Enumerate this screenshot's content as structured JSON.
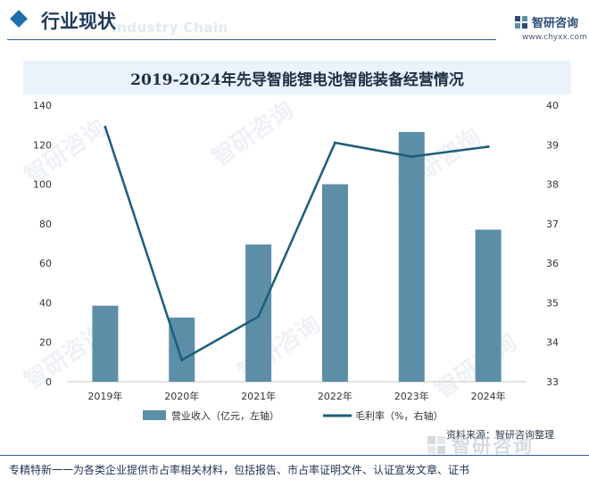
{
  "header": {
    "title": "行业现状",
    "subtitle_watermark": "Industry Chain",
    "logo_name": "智研咨询",
    "site": "www.chyxx.com"
  },
  "watermark": {
    "text": "智研咨询"
  },
  "chart_data": {
    "type": "bar+line",
    "title": "2019-2024年先导智能锂电池智能装备经营情况",
    "categories": [
      "2019年",
      "2020年",
      "2021年",
      "2022年",
      "2023年",
      "2024年"
    ],
    "series": [
      {
        "name": "营业收入（亿元，左轴）",
        "type": "bar",
        "axis": "left",
        "values": [
          38.5,
          32.5,
          69.5,
          100.0,
          126.5,
          77.0
        ],
        "color": "#5d8ea8"
      },
      {
        "name": "毛利率（%，右轴）",
        "type": "line",
        "axis": "right",
        "values": [
          39.45,
          33.55,
          34.65,
          39.05,
          38.7,
          38.95
        ],
        "color": "#1d5d7a"
      }
    ],
    "left_axis": {
      "min": 0,
      "max": 140,
      "ticks": [
        "0",
        "20",
        "40",
        "60",
        "80",
        "100",
        "120",
        "140"
      ]
    },
    "right_axis": {
      "min": 33,
      "max": 40,
      "ticks": [
        "33",
        "34",
        "35",
        "36",
        "37",
        "38",
        "39",
        "40"
      ]
    },
    "grid": false,
    "legend": "bottom"
  },
  "source": "资料来源：智研咨询整理",
  "footer_logo": "智研咨询",
  "footer": "专精特新一一为各类企业提供市占率相关材料，包括报告、市占率证明文件、认证宣发文章、证书"
}
